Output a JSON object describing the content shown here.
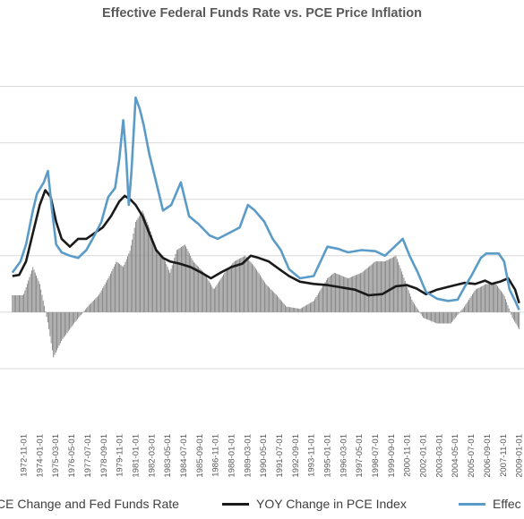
{
  "chart_data": {
    "type": "line",
    "title": "Effective Federal Funds Rate vs. PCE Price Inflation",
    "xlabel": "",
    "ylabel": "",
    "ylim": [
      -5,
      24
    ],
    "grid": true,
    "legend_position": "bottom",
    "x_ticks": [
      "1972-11-01",
      "1974-01-01",
      "1975-03-01",
      "1976-05-01",
      "1977-07-01",
      "1978-09-01",
      "1979-11-01",
      "1981-01-01",
      "1982-03-01",
      "1983-05-01",
      "1984-07-01",
      "1985-09-01",
      "1986-11-01",
      "1988-01-01",
      "1989-03-01",
      "1990-05-01",
      "1991-07-01",
      "1992-09-01",
      "1993-11-01",
      "1995-01-01",
      "1996-03-01",
      "1997-05-01",
      "1998-07-01",
      "1999-09-01",
      "2000-11-01",
      "2002-01-01",
      "2003-03-01",
      "2004-05-01",
      "2005-07-01",
      "2006-09-01",
      "2007-11-01",
      "2009-01-01"
    ],
    "series": [
      {
        "name": "Difference Between YOY PCE Change and Fed Funds Rate",
        "display_label": "CE Change and Fed Funds Rate",
        "style": "bar",
        "color": "#808080",
        "x": [
          1972.0,
          1972.8,
          1973.5,
          1974.0,
          1974.6,
          1975.0,
          1975.6,
          1976.5,
          1977.5,
          1978.3,
          1979.0,
          1979.6,
          1980.1,
          1980.6,
          1981.0,
          1981.5,
          1982.0,
          1982.5,
          1983.0,
          1983.5,
          1984.0,
          1984.6,
          1985.2,
          1986.0,
          1986.7,
          1987.5,
          1988.2,
          1989.0,
          1989.7,
          1990.5,
          1991.3,
          1992.0,
          1993.0,
          1994.0,
          1995.0,
          1995.5,
          1996.5,
          1997.5,
          1998.5,
          1999.2,
          2000.0,
          2000.6,
          2001.2,
          2002.0,
          2003.0,
          2004.0,
          2005.0,
          2005.8,
          2006.6,
          2007.3,
          2007.9,
          2008.5,
          2009.0
        ],
        "values": [
          1.5,
          1.5,
          4.0,
          2.5,
          -1.0,
          -4.0,
          -2.5,
          -1.0,
          0.5,
          1.5,
          3.0,
          4.5,
          4.0,
          5.5,
          8.0,
          9.0,
          7.5,
          5.5,
          5.0,
          3.5,
          5.5,
          6.0,
          4.5,
          3.5,
          2.0,
          3.5,
          4.5,
          5.0,
          4.0,
          2.5,
          1.5,
          0.5,
          0.3,
          1.0,
          3.0,
          3.5,
          3.0,
          3.5,
          4.5,
          4.5,
          5.0,
          3.0,
          1.0,
          -0.5,
          -1.0,
          -1.0,
          0.5,
          2.0,
          2.5,
          2.5,
          1.5,
          -0.5,
          -1.5
        ]
      },
      {
        "name": "YOY Change in PCE Index",
        "style": "line",
        "color": "#1a1a1a",
        "x": [
          1972.0,
          1972.5,
          1973.0,
          1973.5,
          1974.0,
          1974.4,
          1974.8,
          1975.2,
          1975.6,
          1976.2,
          1976.8,
          1977.4,
          1978.0,
          1978.6,
          1979.2,
          1979.8,
          1980.2,
          1980.6,
          1981.0,
          1981.5,
          1982.0,
          1982.5,
          1983.0,
          1983.5,
          1984.2,
          1985.0,
          1985.8,
          1986.5,
          1987.2,
          1988.0,
          1988.8,
          1989.4,
          1990.0,
          1990.7,
          1991.5,
          1992.2,
          1993.0,
          1994.0,
          1995.0,
          1996.0,
          1997.0,
          1998.0,
          1999.0,
          2000.0,
          2000.8,
          2001.5,
          2002.2,
          2003.0,
          2004.0,
          2005.0,
          2005.8,
          2006.5,
          2007.0,
          2007.6,
          2008.2,
          2008.7,
          2009.0
        ],
        "values": [
          3.2,
          3.3,
          4.5,
          7.0,
          9.5,
          10.8,
          10.2,
          8.0,
          6.5,
          5.8,
          6.5,
          6.5,
          7.0,
          7.5,
          8.5,
          9.8,
          10.3,
          10.0,
          9.5,
          8.5,
          7.0,
          5.5,
          4.8,
          4.5,
          4.3,
          4.0,
          3.5,
          3.0,
          3.5,
          4.0,
          4.3,
          5.0,
          4.8,
          4.5,
          3.8,
          3.2,
          2.7,
          2.5,
          2.4,
          2.2,
          2.0,
          1.5,
          1.6,
          2.3,
          2.4,
          2.1,
          1.6,
          2.0,
          2.3,
          2.6,
          2.5,
          2.8,
          2.5,
          2.7,
          3.0,
          2.0,
          0.8
        ]
      },
      {
        "name": "Effective Federal Funds Rate",
        "display_label": "Effec",
        "style": "line",
        "color": "#5b9bc7",
        "x": [
          1972.0,
          1972.6,
          1973.0,
          1973.5,
          1973.8,
          1974.3,
          1974.6,
          1974.9,
          1975.2,
          1975.6,
          1976.2,
          1976.8,
          1977.4,
          1978.0,
          1978.5,
          1979.0,
          1979.5,
          1979.8,
          1980.1,
          1980.3,
          1980.5,
          1980.7,
          1981.0,
          1981.3,
          1981.6,
          1982.0,
          1982.5,
          1983.0,
          1983.6,
          1984.3,
          1984.9,
          1985.6,
          1986.4,
          1987.0,
          1987.8,
          1988.6,
          1989.2,
          1989.7,
          1990.4,
          1991.0,
          1991.6,
          1992.2,
          1993.0,
          1994.0,
          1994.5,
          1995.0,
          1995.8,
          1996.5,
          1997.5,
          1998.5,
          1999.2,
          1999.9,
          2000.5,
          2001.0,
          2001.6,
          2002.2,
          2003.0,
          2003.8,
          2004.5,
          2005.0,
          2005.5,
          2006.2,
          2006.6,
          2007.0,
          2007.5,
          2007.9,
          2008.3,
          2008.7,
          2009.0
        ],
        "values": [
          3.5,
          4.5,
          6.0,
          9.0,
          10.5,
          11.5,
          12.5,
          9.0,
          6.0,
          5.3,
          5.0,
          4.8,
          5.5,
          6.8,
          8.0,
          10.2,
          11.0,
          13.5,
          17.0,
          14.0,
          9.5,
          12.5,
          19.0,
          18.0,
          16.5,
          14.0,
          11.5,
          9.0,
          9.5,
          11.5,
          8.5,
          7.8,
          6.8,
          6.5,
          7.0,
          7.5,
          9.5,
          9.0,
          8.0,
          6.5,
          5.5,
          3.8,
          3.0,
          3.2,
          4.5,
          5.8,
          5.6,
          5.3,
          5.5,
          5.4,
          5.0,
          5.8,
          6.5,
          5.0,
          3.5,
          1.8,
          1.2,
          1.0,
          1.1,
          2.2,
          3.2,
          4.8,
          5.2,
          5.2,
          5.2,
          4.5,
          2.0,
          1.0,
          0.2
        ]
      }
    ]
  }
}
